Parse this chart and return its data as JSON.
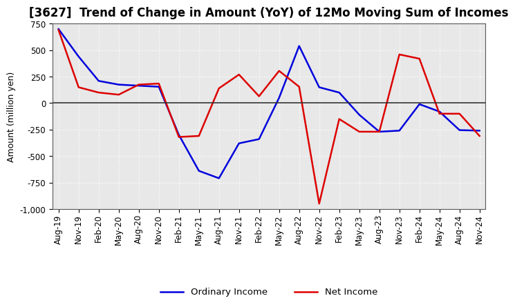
{
  "title": "[3627]  Trend of Change in Amount (YoY) of 12Mo Moving Sum of Incomes",
  "ylabel": "Amount (million yen)",
  "xlabels": [
    "Aug-19",
    "Nov-19",
    "Feb-20",
    "May-20",
    "Aug-20",
    "Nov-20",
    "Feb-21",
    "May-21",
    "Aug-21",
    "Nov-21",
    "Feb-22",
    "May-22",
    "Aug-22",
    "Nov-22",
    "Feb-23",
    "May-23",
    "Aug-23",
    "Nov-23",
    "Feb-24",
    "May-24",
    "Aug-24",
    "Nov-24"
  ],
  "ordinary_income": [
    700,
    440,
    210,
    175,
    165,
    155,
    -300,
    -640,
    -710,
    -380,
    -340,
    50,
    540,
    150,
    100,
    -110,
    -270,
    -260,
    -10,
    -80,
    -255,
    -260
  ],
  "net_income": [
    690,
    150,
    100,
    80,
    175,
    185,
    -320,
    -310,
    140,
    270,
    65,
    305,
    155,
    -950,
    -150,
    -270,
    -270,
    460,
    420,
    -100,
    -100,
    -310
  ],
  "ordinary_income_color": "#0000dd",
  "net_income_color": "#dd0000",
  "ylim": [
    -1000,
    750
  ],
  "yticks": [
    -1000,
    -750,
    -500,
    -250,
    0,
    250,
    500,
    750
  ],
  "plot_bg_color": "#e8e8e8",
  "fig_bg_color": "#ffffff",
  "grid_color": "#ffffff",
  "linewidth": 1.8,
  "title_fontsize": 12,
  "ylabel_fontsize": 9,
  "tick_fontsize": 8.5,
  "legend_fontsize": 9.5
}
